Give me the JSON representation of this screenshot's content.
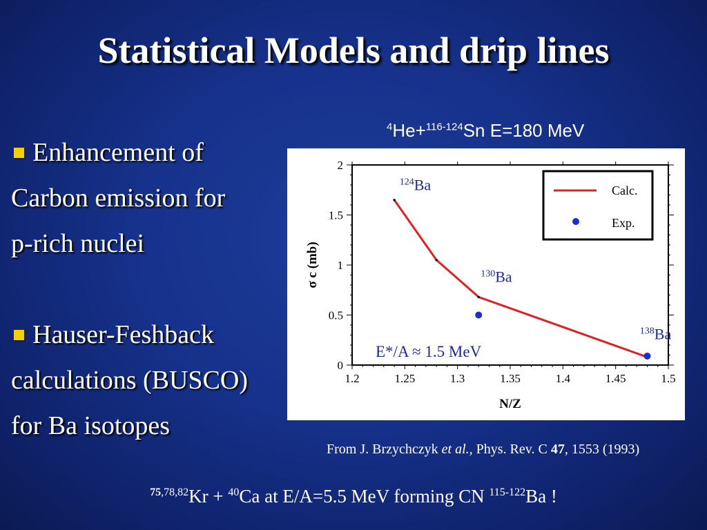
{
  "slide": {
    "title": "Statistical Models and drip lines",
    "bullets": [
      {
        "lines": [
          "Enhancement of",
          "Carbon emission for",
          "p-rich nuclei"
        ]
      },
      {
        "lines": [
          "Hauser-Feshback",
          "calculations (BUSCO)",
          "for Ba isotopes"
        ]
      }
    ],
    "chart_heading": {
      "mass": "4",
      "projectile": "He+",
      "target_mass": "116-124",
      "target": "Sn E=180 MeV"
    },
    "citation": {
      "pre": "From J. Brzychczyk ",
      "etal": "et al.,",
      "journal": " Phys. Rev. C ",
      "volume": "47",
      "rest": ", 1553 (1993)"
    },
    "bottom_note": {
      "kr_mass_bold": "75",
      "kr_mass_rest": ",78,82",
      "kr": "Kr + ",
      "ca_mass": "40",
      "ca": "Ca at E/A=5.5 MeV forming CN ",
      "ba_mass": "115-122",
      "ba": "Ba !"
    },
    "colors": {
      "accent_bullet": "#f5d000",
      "calc_line": "#dd2222",
      "exp_point": "#1a2ed1",
      "label_blue": "#1b2a9a"
    }
  },
  "chart_data": {
    "type": "line",
    "x_label": "N/Z",
    "y_label": "σ c (mb)",
    "xlim": [
      1.2,
      1.5
    ],
    "ylim": [
      0,
      2
    ],
    "xticks": [
      "1.2",
      "1.25",
      "1.3",
      "1.35",
      "1.4",
      "1.45",
      "1.5"
    ],
    "yticks": [
      "0",
      "0.5",
      "1",
      "1.5",
      "2"
    ],
    "series": [
      {
        "name": "Calc.",
        "kind": "line",
        "x": [
          1.24,
          1.28,
          1.32,
          1.48
        ],
        "y": [
          1.65,
          1.05,
          0.68,
          0.08
        ]
      },
      {
        "name": "Exp.",
        "kind": "scatter",
        "x": [
          1.32,
          1.48
        ],
        "y": [
          0.5,
          0.09
        ]
      }
    ],
    "annotations": [
      {
        "mass": "124",
        "element": "Ba",
        "x": 1.245,
        "y": 1.75
      },
      {
        "mass": "130",
        "element": "Ba",
        "x": 1.322,
        "y": 0.83
      },
      {
        "mass": "138",
        "element": "Ba",
        "x": 1.473,
        "y": 0.26
      }
    ],
    "energy_note": "E*/A ≈ 1.5 MeV",
    "legend_position": "top-right"
  }
}
